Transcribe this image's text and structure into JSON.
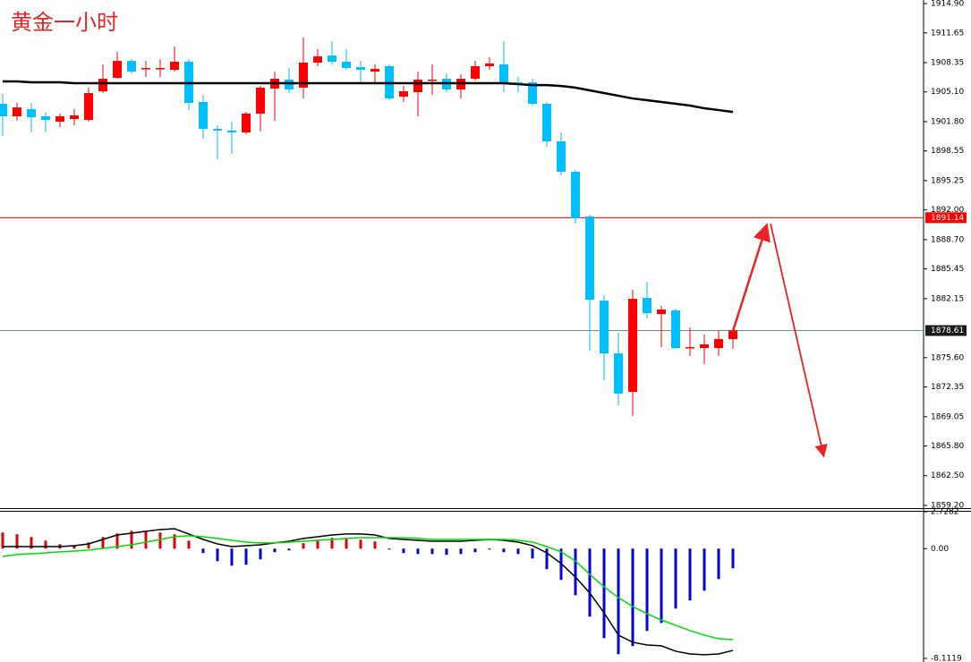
{
  "chart_data": [
    {
      "type": "candlestick",
      "title": "黄金一小时",
      "ylim": [
        1858.9,
        1915.3
      ],
      "yticks": [
        {
          "value": 1914.9,
          "label": "1914.90"
        },
        1911.65,
        1908.35,
        {
          "value": 1905.1,
          "label": "1905.10"
        },
        {
          "value": 1901.8,
          "label": "1901.80"
        },
        1898.55,
        1895.25,
        {
          "value": 1892,
          "label": "1892.00"
        },
        {
          "value": 1888.7,
          "label": "1888.70"
        },
        1885.45,
        1882.15,
        {
          "value": 1875.6,
          "label": "1875.60"
        },
        1872.35,
        1869.05,
        {
          "value": 1865.8,
          "label": "1865.80"
        },
        {
          "value": 1862.5,
          "label": "1862.50"
        },
        {
          "value": 1859.2,
          "label": "1859.20"
        }
      ],
      "up_color": "#ff0000",
      "down_color": "#00bfff",
      "open": [
        1903.78,
        1902.39,
        1903.18,
        1902.39,
        1901.79,
        1902.09,
        1901.99,
        1905.17,
        1906.66,
        1908.54,
        1907.65,
        1907.65,
        1907.55,
        1908.45,
        1903.98,
        1901.0,
        1900.8,
        1900.6,
        1902.69,
        1905.47,
        1906.46,
        1905.57,
        1908.35,
        1909.14,
        1908.45,
        1907.85,
        1907.35,
        1907.95,
        1904.57,
        1905.07,
        1906.36,
        1906.56,
        1905.37,
        1906.56,
        1907.95,
        1908.15,
        1906.16,
        1906.16,
        1903.78,
        1899.61,
        1896.23,
        1891.27,
        1881.93,
        1876.07,
        1871.8,
        1882.23,
        1880.44,
        1880.84,
        1876.67,
        1876.67,
        1876.67,
        1877.66
      ],
      "high": [
        1904.87,
        1903.88,
        1903.88,
        1902.88,
        1902.69,
        1903.18,
        1905.57,
        1908.15,
        1909.54,
        1908.74,
        1908.54,
        1908.74,
        1910.13,
        1908.74,
        1904.77,
        1901.4,
        1901.79,
        1902.88,
        1905.76,
        1907.35,
        1907.75,
        1911.13,
        1909.84,
        1910.73,
        1909.84,
        1908.54,
        1908.15,
        1908.15,
        1905.76,
        1907.35,
        1908.15,
        1907.15,
        1907.06,
        1908.54,
        1908.94,
        1910.73,
        1906.76,
        1906.56,
        1903.98,
        1900.6,
        1896.43,
        1891.47,
        1882.53,
        1878.36,
        1883.12,
        1884.02,
        1881.34,
        1881.04,
        1878.95,
        1878.16,
        1878.56,
        1878.75
      ],
      "low": [
        1900.2,
        1901.89,
        1900.6,
        1900.6,
        1901.2,
        1901.4,
        1901.79,
        1904.97,
        1906.56,
        1907.15,
        1906.76,
        1906.76,
        1907.35,
        1903.08,
        1899.91,
        1897.62,
        1898.22,
        1900.4,
        1900.7,
        1901.89,
        1904.97,
        1904.37,
        1907.95,
        1908.15,
        1907.55,
        1906.16,
        1906.06,
        1904.18,
        1903.98,
        1902.39,
        1904.77,
        1905.07,
        1904.37,
        1906.36,
        1907.55,
        1905.07,
        1905.07,
        1903.58,
        1899.01,
        1895.83,
        1890.47,
        1876.37,
        1873.09,
        1870.31,
        1869.12,
        1879.95,
        1876.77,
        1876.57,
        1875.78,
        1874.88,
        1875.78,
        1876.57
      ],
      "close": [
        1902.39,
        1903.38,
        1902.29,
        1901.99,
        1902.39,
        1902.49,
        1904.97,
        1906.56,
        1908.54,
        1907.35,
        1907.75,
        1907.75,
        1908.45,
        1903.88,
        1901.0,
        1900.8,
        1900.6,
        1902.69,
        1905.57,
        1906.56,
        1905.37,
        1908.35,
        1909.04,
        1908.45,
        1907.75,
        1907.55,
        1907.65,
        1904.37,
        1905.17,
        1906.46,
        1906.46,
        1905.37,
        1906.56,
        1907.95,
        1908.25,
        1906.16,
        1905.96,
        1903.78,
        1899.61,
        1896.23,
        1891.07,
        1882.03,
        1876.07,
        1871.61,
        1882.13,
        1880.54,
        1880.94,
        1876.67,
        1876.77,
        1877.07,
        1877.66,
        1878.61
      ],
      "overlays": [
        {
          "color": "#000000",
          "values": [
            1906.26,
            1906.26,
            1906.16,
            1906.16,
            1906.16,
            1906.06,
            1906.06,
            1906.06,
            1906.06,
            1906.06,
            1906.06,
            1906.06,
            1906.06,
            1906.06,
            1906.06,
            1906.06,
            1906.06,
            1906.06,
            1906.06,
            1906.06,
            1906.06,
            1906.06,
            1906.06,
            1906.06,
            1906.06,
            1906.06,
            1906.06,
            1906.06,
            1906.06,
            1906.06,
            1906.06,
            1906.06,
            1906.06,
            1906.06,
            1906.06,
            1906.06,
            1905.96,
            1905.86,
            1905.86,
            1905.76,
            1905.57,
            1905.27,
            1904.97,
            1904.67,
            1904.37,
            1904.18,
            1903.98,
            1903.78,
            1903.58,
            1903.28,
            1903.08,
            1902.88
          ]
        }
      ],
      "levels": [
        {
          "value": 1891.14,
          "color": "#ff0000",
          "label_fill": "#ff0000"
        },
        {
          "value": 1878.61,
          "color": "#6c8ca8",
          "label_fill": "#1a1a1a"
        }
      ]
    },
    {
      "type": "macd",
      "ylim": [
        -8.1119,
        2.7282
      ],
      "yticks": [
        2.7282,
        {
          "value": 0,
          "label": "0.00"
        },
        -8.1119
      ],
      "histogram": {
        "positive_color": "#e00000",
        "negative_color": "#0000e0",
        "values": [
          1.19,
          1.06,
          0.86,
          0.59,
          0.33,
          0.26,
          0.46,
          0.86,
          1.12,
          1.32,
          1.26,
          1.19,
          1.06,
          0.59,
          -0.33,
          -0.93,
          -1.26,
          -1.19,
          -0.79,
          -0.26,
          -0.13,
          0.4,
          0.66,
          0.79,
          0.79,
          0.66,
          0.53,
          -0.07,
          -0.33,
          -0.4,
          -0.4,
          -0.46,
          -0.4,
          -0.26,
          -0.07,
          -0.26,
          -0.4,
          -0.73,
          -1.52,
          -2.31,
          -3.44,
          -5.02,
          -6.61,
          -7.8,
          -7.2,
          -6.08,
          -5.49,
          -4.43,
          -3.83,
          -3.11,
          -2.25,
          -1.45
        ]
      },
      "lines": [
        {
          "color": "#000000",
          "values": [
            0.15,
            0.15,
            0.15,
            0.15,
            0.15,
            0.22,
            0.35,
            0.68,
            1.01,
            1.14,
            1.28,
            1.41,
            1.47,
            1.08,
            0.68,
            0.35,
            0.15,
            0.22,
            0.28,
            0.42,
            0.55,
            0.75,
            0.88,
            1.01,
            1.08,
            1.08,
            1.01,
            0.75,
            0.68,
            0.61,
            0.55,
            0.55,
            0.55,
            0.61,
            0.68,
            0.61,
            0.48,
            0.22,
            -0.31,
            -1.1,
            -2.1,
            -3.28,
            -4.74,
            -6.39,
            -6.92,
            -7.12,
            -7.18,
            -7.58,
            -7.78,
            -7.84,
            -7.78,
            -7.52
          ]
        },
        {
          "color": "#00dd00",
          "values": [
            -0.58,
            -0.44,
            -0.38,
            -0.31,
            -0.24,
            -0.18,
            -0.11,
            0.02,
            0.15,
            0.28,
            0.48,
            0.68,
            0.88,
            0.95,
            0.88,
            0.75,
            0.61,
            0.48,
            0.42,
            0.42,
            0.48,
            0.55,
            0.61,
            0.68,
            0.75,
            0.81,
            0.81,
            0.81,
            0.81,
            0.75,
            0.68,
            0.68,
            0.68,
            0.68,
            0.68,
            0.68,
            0.61,
            0.48,
            0.15,
            -0.24,
            -0.91,
            -1.9,
            -2.82,
            -3.62,
            -4.28,
            -4.81,
            -5.27,
            -5.66,
            -6.06,
            -6.39,
            -6.66,
            -6.72
          ]
        }
      ]
    }
  ]
}
